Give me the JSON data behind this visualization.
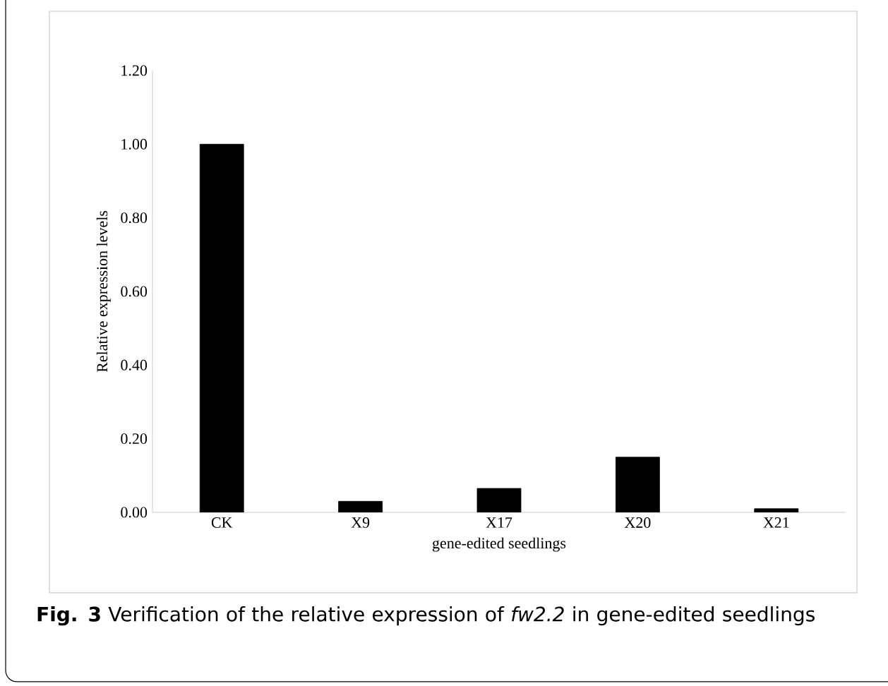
{
  "chart_data": {
    "type": "bar",
    "ylabel": "Relative expression levels",
    "xlabel": "gene-edited seedlings",
    "title": "**Fig. 3**  Verification of the relative expression of *fw2.2* in gene-edited seedlings",
    "categories": [
      "CK",
      "X9",
      "X17",
      "X20",
      "X21"
    ],
    "values": [
      1.0,
      0.03,
      0.065,
      0.15,
      0.01
    ],
    "color": "#000000",
    "ylim": [
      0,
      1.2
    ],
    "yticks": [
      {
        "value": 0,
        "label": "0.00"
      },
      {
        "value": 0.2,
        "label": "0.20"
      },
      {
        "value": 0.4,
        "label": "0.40"
      },
      {
        "value": 0.6,
        "label": "0.60"
      },
      {
        "value": 0.8,
        "label": "0.80"
      },
      {
        "value": 1.0,
        "label": "1.00"
      },
      {
        "value": 1.2,
        "label": "1.20"
      }
    ],
    "grid": false
  }
}
